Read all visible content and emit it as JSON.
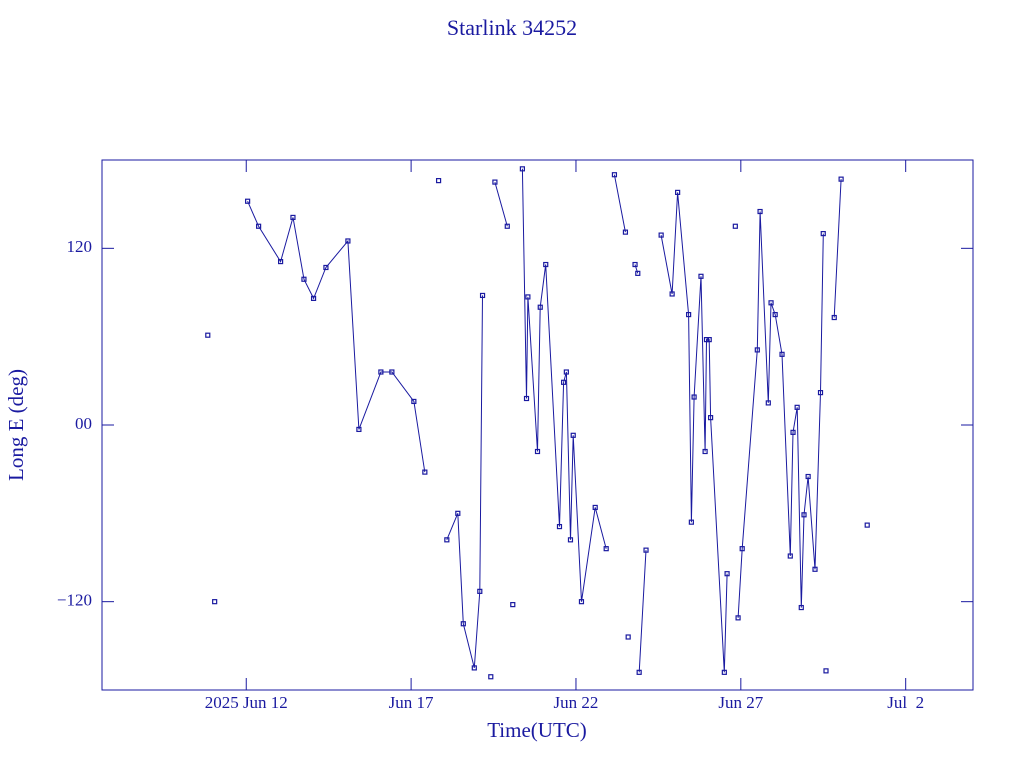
{
  "chart_data": {
    "type": "line",
    "title": "Starlink 34252",
    "x_label": "Time(UTC)",
    "y_label": "Long E (deg)",
    "xlim": [
      "2025-06-07T15:00",
      "2025-07-04T01:00"
    ],
    "xticks": [
      {
        "value": "2025-06-12T00:00",
        "label": "2025 Jun 12"
      },
      {
        "value": "2025-06-17T00:00",
        "label": "Jun 17"
      },
      {
        "value": "2025-06-22T00:00",
        "label": "Jun 22"
      },
      {
        "value": "2025-06-27T00:00",
        "label": "Jun 27"
      },
      {
        "value": "2025-07-02T00:00",
        "label": "Jul  2"
      }
    ],
    "ylim": [
      -180,
      180
    ],
    "yticks": [
      {
        "value": -120,
        "label": "−120"
      },
      {
        "value": 0,
        "label": "00"
      },
      120
    ],
    "series": [
      {
        "color": "#1a1aa0",
        "x": [
          "2025-06-10T20:00",
          null,
          "2025-06-11T01:00",
          null,
          "2025-06-12T01:00",
          "2025-06-12T09:00",
          "2025-06-13T01:00",
          "2025-06-13T10:00",
          "2025-06-13T18:00",
          "2025-06-14T01:00",
          "2025-06-14T10:00",
          "2025-06-15T02:00",
          "2025-06-15T10:00",
          "2025-06-16T02:00",
          "2025-06-16T10:00",
          "2025-06-17T02:00",
          "2025-06-17T10:00",
          null,
          "2025-06-17T20:00",
          null,
          "2025-06-18T02:00",
          "2025-06-18T10:00",
          "2025-06-18T14:00",
          "2025-06-18T22:00",
          "2025-06-19T02:00",
          "2025-06-19T04:00",
          null,
          "2025-06-19T10:00",
          null,
          "2025-06-19T13:00",
          "2025-06-19T22:00",
          null,
          "2025-06-20T02:00",
          null,
          "2025-06-20T09:00",
          "2025-06-20T12:00",
          "2025-06-20T13:00",
          "2025-06-20T20:00",
          "2025-06-20T22:00",
          "2025-06-21T02:00",
          "2025-06-21T12:00",
          "2025-06-21T15:00",
          "2025-06-21T17:00",
          "2025-06-21T20:00",
          "2025-06-21T22:00",
          "2025-06-22T04:00",
          "2025-06-22T14:00",
          "2025-06-22T22:00",
          null,
          "2025-06-23T04:00",
          "2025-06-23T12:00",
          null,
          "2025-06-23T14:00",
          null,
          "2025-06-23T19:00",
          "2025-06-23T21:00",
          null,
          "2025-06-23T22:00",
          "2025-06-24T03:00",
          null,
          "2025-06-24T14:00",
          "2025-06-24T22:00",
          "2025-06-25T02:00",
          "2025-06-25T10:00",
          "2025-06-25T12:00",
          "2025-06-25T14:00",
          "2025-06-25T19:00",
          "2025-06-25T22:00",
          "2025-06-25T23:00",
          "2025-06-26T01:00",
          "2025-06-26T02:00",
          "2025-06-26T12:00",
          "2025-06-26T14:00",
          null,
          "2025-06-26T20:00",
          null,
          "2025-06-26T22:00",
          "2025-06-27T01:00",
          "2025-06-27T12:00",
          "2025-06-27T14:00",
          "2025-06-27T20:00",
          "2025-06-27T22:00",
          "2025-06-28T01:00",
          "2025-06-28T06:00",
          "2025-06-28T12:00",
          "2025-06-28T14:00",
          "2025-06-28T17:00",
          "2025-06-28T20:00",
          "2025-06-28T22:00",
          "2025-06-29T01:00",
          "2025-06-29T06:00",
          "2025-06-29T10:00",
          "2025-06-29T12:00",
          null,
          "2025-06-29T14:00",
          null,
          "2025-06-29T20:00",
          "2025-06-30T01:00",
          null,
          "2025-06-30T20:00"
        ],
        "values": [
          61,
          null,
          -120,
          null,
          152,
          135,
          111,
          141,
          99,
          86,
          107,
          125,
          -3,
          36,
          36,
          16,
          -32,
          null,
          166,
          null,
          -78,
          -60,
          -135,
          -165,
          -113,
          88,
          null,
          -171,
          null,
          165,
          135,
          null,
          -122,
          null,
          174,
          18,
          87,
          -18,
          80,
          109,
          -69,
          29,
          36,
          -78,
          -7,
          -120,
          -56,
          -84,
          null,
          170,
          131,
          null,
          -144,
          null,
          109,
          103,
          null,
          -168,
          -85,
          null,
          129,
          89,
          158,
          75,
          -66,
          19,
          101,
          -18,
          58,
          58,
          5,
          -168,
          -101,
          null,
          135,
          null,
          -131,
          -84,
          51,
          145,
          15,
          83,
          75,
          48,
          -89,
          -5,
          12,
          -124,
          -61,
          -35,
          -98,
          22,
          130,
          null,
          -167,
          null,
          73,
          167,
          null,
          -68
        ]
      }
    ]
  }
}
